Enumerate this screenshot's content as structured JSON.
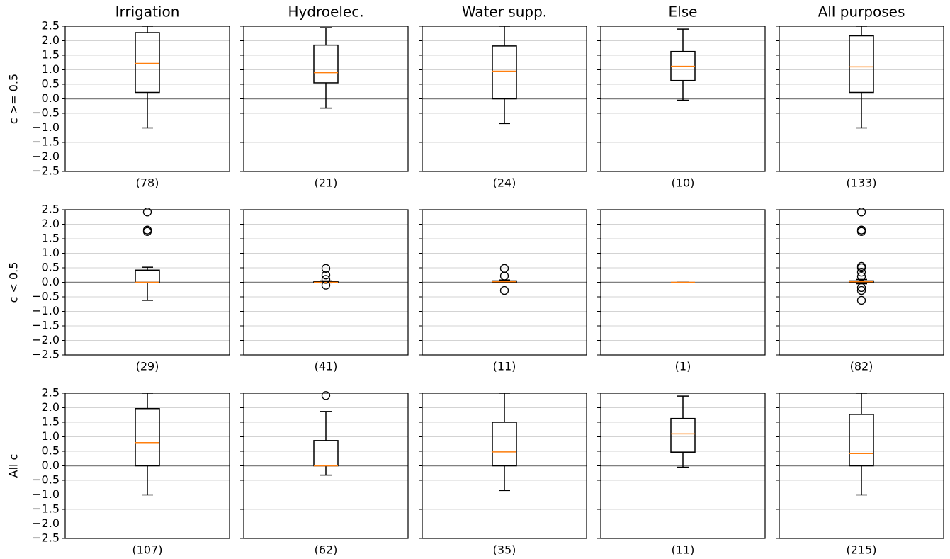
{
  "chart_data": [
    {
      "type": "box",
      "title": "Irrigation",
      "ylabel": "c >= 0.5",
      "categories": [
        "(78)"
      ],
      "stats": {
        "whislo": -1.0,
        "q1": 0.22,
        "median": 1.22,
        "q3": 2.28,
        "whishi": 2.5
      },
      "outliers": [],
      "ylim": [
        -2.5,
        2.5
      ],
      "yticks": [
        {
          "value": 2.5,
          "label": "2.5"
        },
        {
          "value": 2,
          "label": "2.0"
        },
        {
          "value": 1.5,
          "label": "1.5"
        },
        {
          "value": 1,
          "label": "1.0"
        },
        {
          "value": 0.5,
          "label": "0.5"
        },
        {
          "value": 0,
          "label": "0.0"
        },
        {
          "value": -0.5,
          "label": "−0.5"
        },
        {
          "value": -1,
          "label": "−1.0"
        },
        {
          "value": -1.5,
          "label": "−1.5"
        },
        {
          "value": -2,
          "label": "−2.0"
        },
        {
          "value": -2.5,
          "label": "−2.5"
        }
      ],
      "grid": true,
      "hline": 0,
      "color": "#000000",
      "median_color": "#ff7f0e"
    },
    {
      "type": "box",
      "title": "Hydroelec.",
      "categories": [
        "(21)"
      ],
      "stats": {
        "whislo": -0.32,
        "q1": 0.55,
        "median": 0.9,
        "q3": 1.85,
        "whishi": 2.45
      },
      "outliers": [],
      "ylim": [
        -2.5,
        2.5
      ],
      "yticks": [
        2.5,
        2,
        1.5,
        1,
        0.5,
        0,
        -0.5,
        -1,
        -1.5,
        -2,
        -2.5
      ],
      "grid": true,
      "hline": 0,
      "color": "#000000",
      "median_color": "#ff7f0e"
    },
    {
      "type": "box",
      "title": "Water supp.",
      "categories": [
        "(24)"
      ],
      "stats": {
        "whislo": -0.85,
        "q1": 0.0,
        "median": 0.95,
        "q3": 1.82,
        "whishi": 2.5
      },
      "outliers": [],
      "ylim": [
        -2.5,
        2.5
      ],
      "yticks": [
        2.5,
        2,
        1.5,
        1,
        0.5,
        0,
        -0.5,
        -1,
        -1.5,
        -2,
        -2.5
      ],
      "grid": true,
      "hline": 0,
      "color": "#000000",
      "median_color": "#ff7f0e"
    },
    {
      "type": "box",
      "title": "Else",
      "categories": [
        "(10)"
      ],
      "stats": {
        "whislo": -0.05,
        "q1": 0.63,
        "median": 1.12,
        "q3": 1.63,
        "whishi": 2.4
      },
      "outliers": [],
      "ylim": [
        -2.5,
        2.5
      ],
      "yticks": [
        2.5,
        2,
        1.5,
        1,
        0.5,
        0,
        -0.5,
        -1,
        -1.5,
        -2,
        -2.5
      ],
      "grid": true,
      "hline": 0,
      "color": "#000000",
      "median_color": "#ff7f0e"
    },
    {
      "type": "box",
      "title": "All purposes",
      "categories": [
        "(133)"
      ],
      "stats": {
        "whislo": -1.0,
        "q1": 0.22,
        "median": 1.1,
        "q3": 2.17,
        "whishi": 2.5
      },
      "outliers": [],
      "ylim": [
        -2.5,
        2.5
      ],
      "yticks": [
        2.5,
        2,
        1.5,
        1,
        0.5,
        0,
        -0.5,
        -1,
        -1.5,
        -2,
        -2.5
      ],
      "grid": true,
      "hline": 0,
      "color": "#000000",
      "median_color": "#ff7f0e"
    },
    {
      "type": "box",
      "ylabel": "c < 0.5",
      "categories": [
        "(29)"
      ],
      "stats": {
        "whislo": -0.62,
        "q1": 0.0,
        "median": 0.0,
        "q3": 0.42,
        "whishi": 0.52
      },
      "outliers": [
        1.75,
        1.8,
        2.42
      ],
      "ylim": [
        -2.5,
        2.5
      ],
      "yticks": [
        {
          "value": 2.5,
          "label": "2.5"
        },
        {
          "value": 2,
          "label": "2.0"
        },
        {
          "value": 1.5,
          "label": "1.5"
        },
        {
          "value": 1,
          "label": "1.0"
        },
        {
          "value": 0.5,
          "label": "0.5"
        },
        {
          "value": 0,
          "label": "0.0"
        },
        {
          "value": -0.5,
          "label": "−0.5"
        },
        {
          "value": -1,
          "label": "−1.0"
        },
        {
          "value": -1.5,
          "label": "−1.5"
        },
        {
          "value": -2,
          "label": "−2.0"
        },
        {
          "value": -2.5,
          "label": "−2.5"
        }
      ],
      "grid": true,
      "hline": 0,
      "color": "#000000",
      "median_color": "#ff7f0e"
    },
    {
      "type": "box",
      "categories": [
        "(41)"
      ],
      "stats": {
        "whislo": -0.02,
        "q1": 0.0,
        "median": 0.0,
        "q3": 0.02,
        "whishi": 0.05
      },
      "outliers": [
        -0.1,
        0.1,
        0.25,
        0.48
      ],
      "ylim": [
        -2.5,
        2.5
      ],
      "yticks": [
        2.5,
        2,
        1.5,
        1,
        0.5,
        0,
        -0.5,
        -1,
        -1.5,
        -2,
        -2.5
      ],
      "grid": true,
      "hline": 0,
      "color": "#000000",
      "median_color": "#ff7f0e"
    },
    {
      "type": "box",
      "categories": [
        "(11)"
      ],
      "stats": {
        "whislo": 0.0,
        "q1": 0.0,
        "median": 0.02,
        "q3": 0.05,
        "whishi": 0.08
      },
      "outliers": [
        -0.28,
        0.22,
        0.48
      ],
      "ylim": [
        -2.5,
        2.5
      ],
      "yticks": [
        2.5,
        2,
        1.5,
        1,
        0.5,
        0,
        -0.5,
        -1,
        -1.5,
        -2,
        -2.5
      ],
      "grid": true,
      "hline": 0,
      "color": "#000000",
      "median_color": "#ff7f0e"
    },
    {
      "type": "box",
      "categories": [
        "(1)"
      ],
      "stats": {
        "whislo": 0,
        "q1": 0,
        "median": 0,
        "q3": 0,
        "whishi": 0
      },
      "outliers": [],
      "ylim": [
        -2.5,
        2.5
      ],
      "yticks": [
        2.5,
        2,
        1.5,
        1,
        0.5,
        0,
        -0.5,
        -1,
        -1.5,
        -2,
        -2.5
      ],
      "grid": true,
      "hline": 0,
      "color": "#000000",
      "median_color": "#ff7f0e"
    },
    {
      "type": "box",
      "categories": [
        "(82)"
      ],
      "stats": {
        "whislo": -0.05,
        "q1": 0.0,
        "median": 0.02,
        "q3": 0.05,
        "whishi": 0.1
      },
      "outliers": [
        -0.62,
        -0.28,
        -0.18,
        0.2,
        0.35,
        0.5,
        0.55,
        1.75,
        1.8,
        2.42
      ],
      "ylim": [
        -2.5,
        2.5
      ],
      "yticks": [
        2.5,
        2,
        1.5,
        1,
        0.5,
        0,
        -0.5,
        -1,
        -1.5,
        -2,
        -2.5
      ],
      "grid": true,
      "hline": 0,
      "color": "#000000",
      "median_color": "#ff7f0e"
    },
    {
      "type": "box",
      "ylabel": "All c",
      "categories": [
        "(107)"
      ],
      "stats": {
        "whislo": -1.0,
        "q1": 0.0,
        "median": 0.8,
        "q3": 1.97,
        "whishi": 2.5
      },
      "outliers": [],
      "ylim": [
        -2.5,
        2.5
      ],
      "yticks": [
        {
          "value": 2.5,
          "label": "2.5"
        },
        {
          "value": 2,
          "label": "2.0"
        },
        {
          "value": 1.5,
          "label": "1.5"
        },
        {
          "value": 1,
          "label": "1.0"
        },
        {
          "value": 0.5,
          "label": "0.5"
        },
        {
          "value": 0,
          "label": "0.0"
        },
        {
          "value": -0.5,
          "label": "−0.5"
        },
        {
          "value": -1,
          "label": "−1.0"
        },
        {
          "value": -1.5,
          "label": "−1.5"
        },
        {
          "value": -2,
          "label": "−2.0"
        },
        {
          "value": -2.5,
          "label": "−2.5"
        }
      ],
      "grid": true,
      "hline": 0,
      "color": "#000000",
      "median_color": "#ff7f0e"
    },
    {
      "type": "box",
      "categories": [
        "(62)"
      ],
      "stats": {
        "whislo": -0.32,
        "q1": 0.0,
        "median": 0.0,
        "q3": 0.87,
        "whishi": 1.87
      },
      "outliers": [
        2.42
      ],
      "ylim": [
        -2.5,
        2.5
      ],
      "yticks": [
        2.5,
        2,
        1.5,
        1,
        0.5,
        0,
        -0.5,
        -1,
        -1.5,
        -2,
        -2.5
      ],
      "grid": true,
      "hline": 0,
      "color": "#000000",
      "median_color": "#ff7f0e"
    },
    {
      "type": "box",
      "categories": [
        "(35)"
      ],
      "stats": {
        "whislo": -0.85,
        "q1": 0.0,
        "median": 0.48,
        "q3": 1.5,
        "whishi": 2.5
      },
      "outliers": [],
      "ylim": [
        -2.5,
        2.5
      ],
      "yticks": [
        2.5,
        2,
        1.5,
        1,
        0.5,
        0,
        -0.5,
        -1,
        -1.5,
        -2,
        -2.5
      ],
      "grid": true,
      "hline": 0,
      "color": "#000000",
      "median_color": "#ff7f0e"
    },
    {
      "type": "box",
      "categories": [
        "(11)"
      ],
      "stats": {
        "whislo": -0.05,
        "q1": 0.47,
        "median": 1.1,
        "q3": 1.63,
        "whishi": 2.4
      },
      "outliers": [],
      "ylim": [
        -2.5,
        2.5
      ],
      "yticks": [
        2.5,
        2,
        1.5,
        1,
        0.5,
        0,
        -0.5,
        -1,
        -1.5,
        -2,
        -2.5
      ],
      "grid": true,
      "hline": 0,
      "color": "#000000",
      "median_color": "#ff7f0e"
    },
    {
      "type": "box",
      "categories": [
        "(215)"
      ],
      "stats": {
        "whislo": -1.0,
        "q1": 0.0,
        "median": 0.42,
        "q3": 1.77,
        "whishi": 2.5
      },
      "outliers": [],
      "ylim": [
        -2.5,
        2.5
      ],
      "yticks": [
        2.5,
        2,
        1.5,
        1,
        0.5,
        0,
        -0.5,
        -1,
        -1.5,
        -2,
        -2.5
      ],
      "grid": true,
      "hline": 0,
      "color": "#000000",
      "median_color": "#ff7f0e"
    }
  ]
}
